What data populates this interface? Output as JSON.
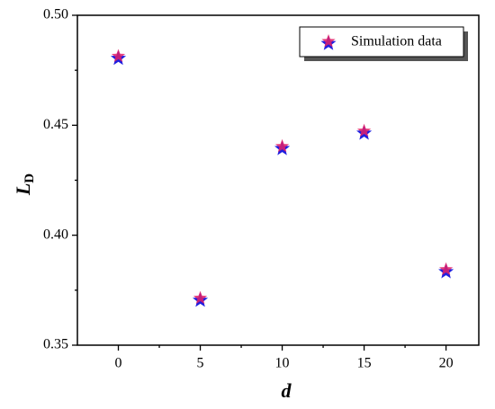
{
  "chart_data": {
    "type": "scatter",
    "x_label": "d",
    "y_label": {
      "text": "L",
      "subscript": "D"
    },
    "xlim": [
      -2.5,
      22
    ],
    "xticks": [
      0,
      5,
      10,
      15,
      20
    ],
    "ylim": [
      0.35,
      0.5
    ],
    "yticks": [
      0.35,
      {
        "value": 0.4,
        "label": "0.40"
      },
      0.45,
      {
        "value": 0.5,
        "label": "0.50"
      }
    ],
    "legend": "upper right",
    "series": [
      {
        "name": "Simulation data",
        "color": "#1f1fe0",
        "edgecolor": "#e0206a",
        "x": [
          0,
          5,
          10,
          15,
          20
        ],
        "values": [
          0.481,
          0.371,
          0.44,
          0.447,
          0.384
        ]
      }
    ]
  }
}
